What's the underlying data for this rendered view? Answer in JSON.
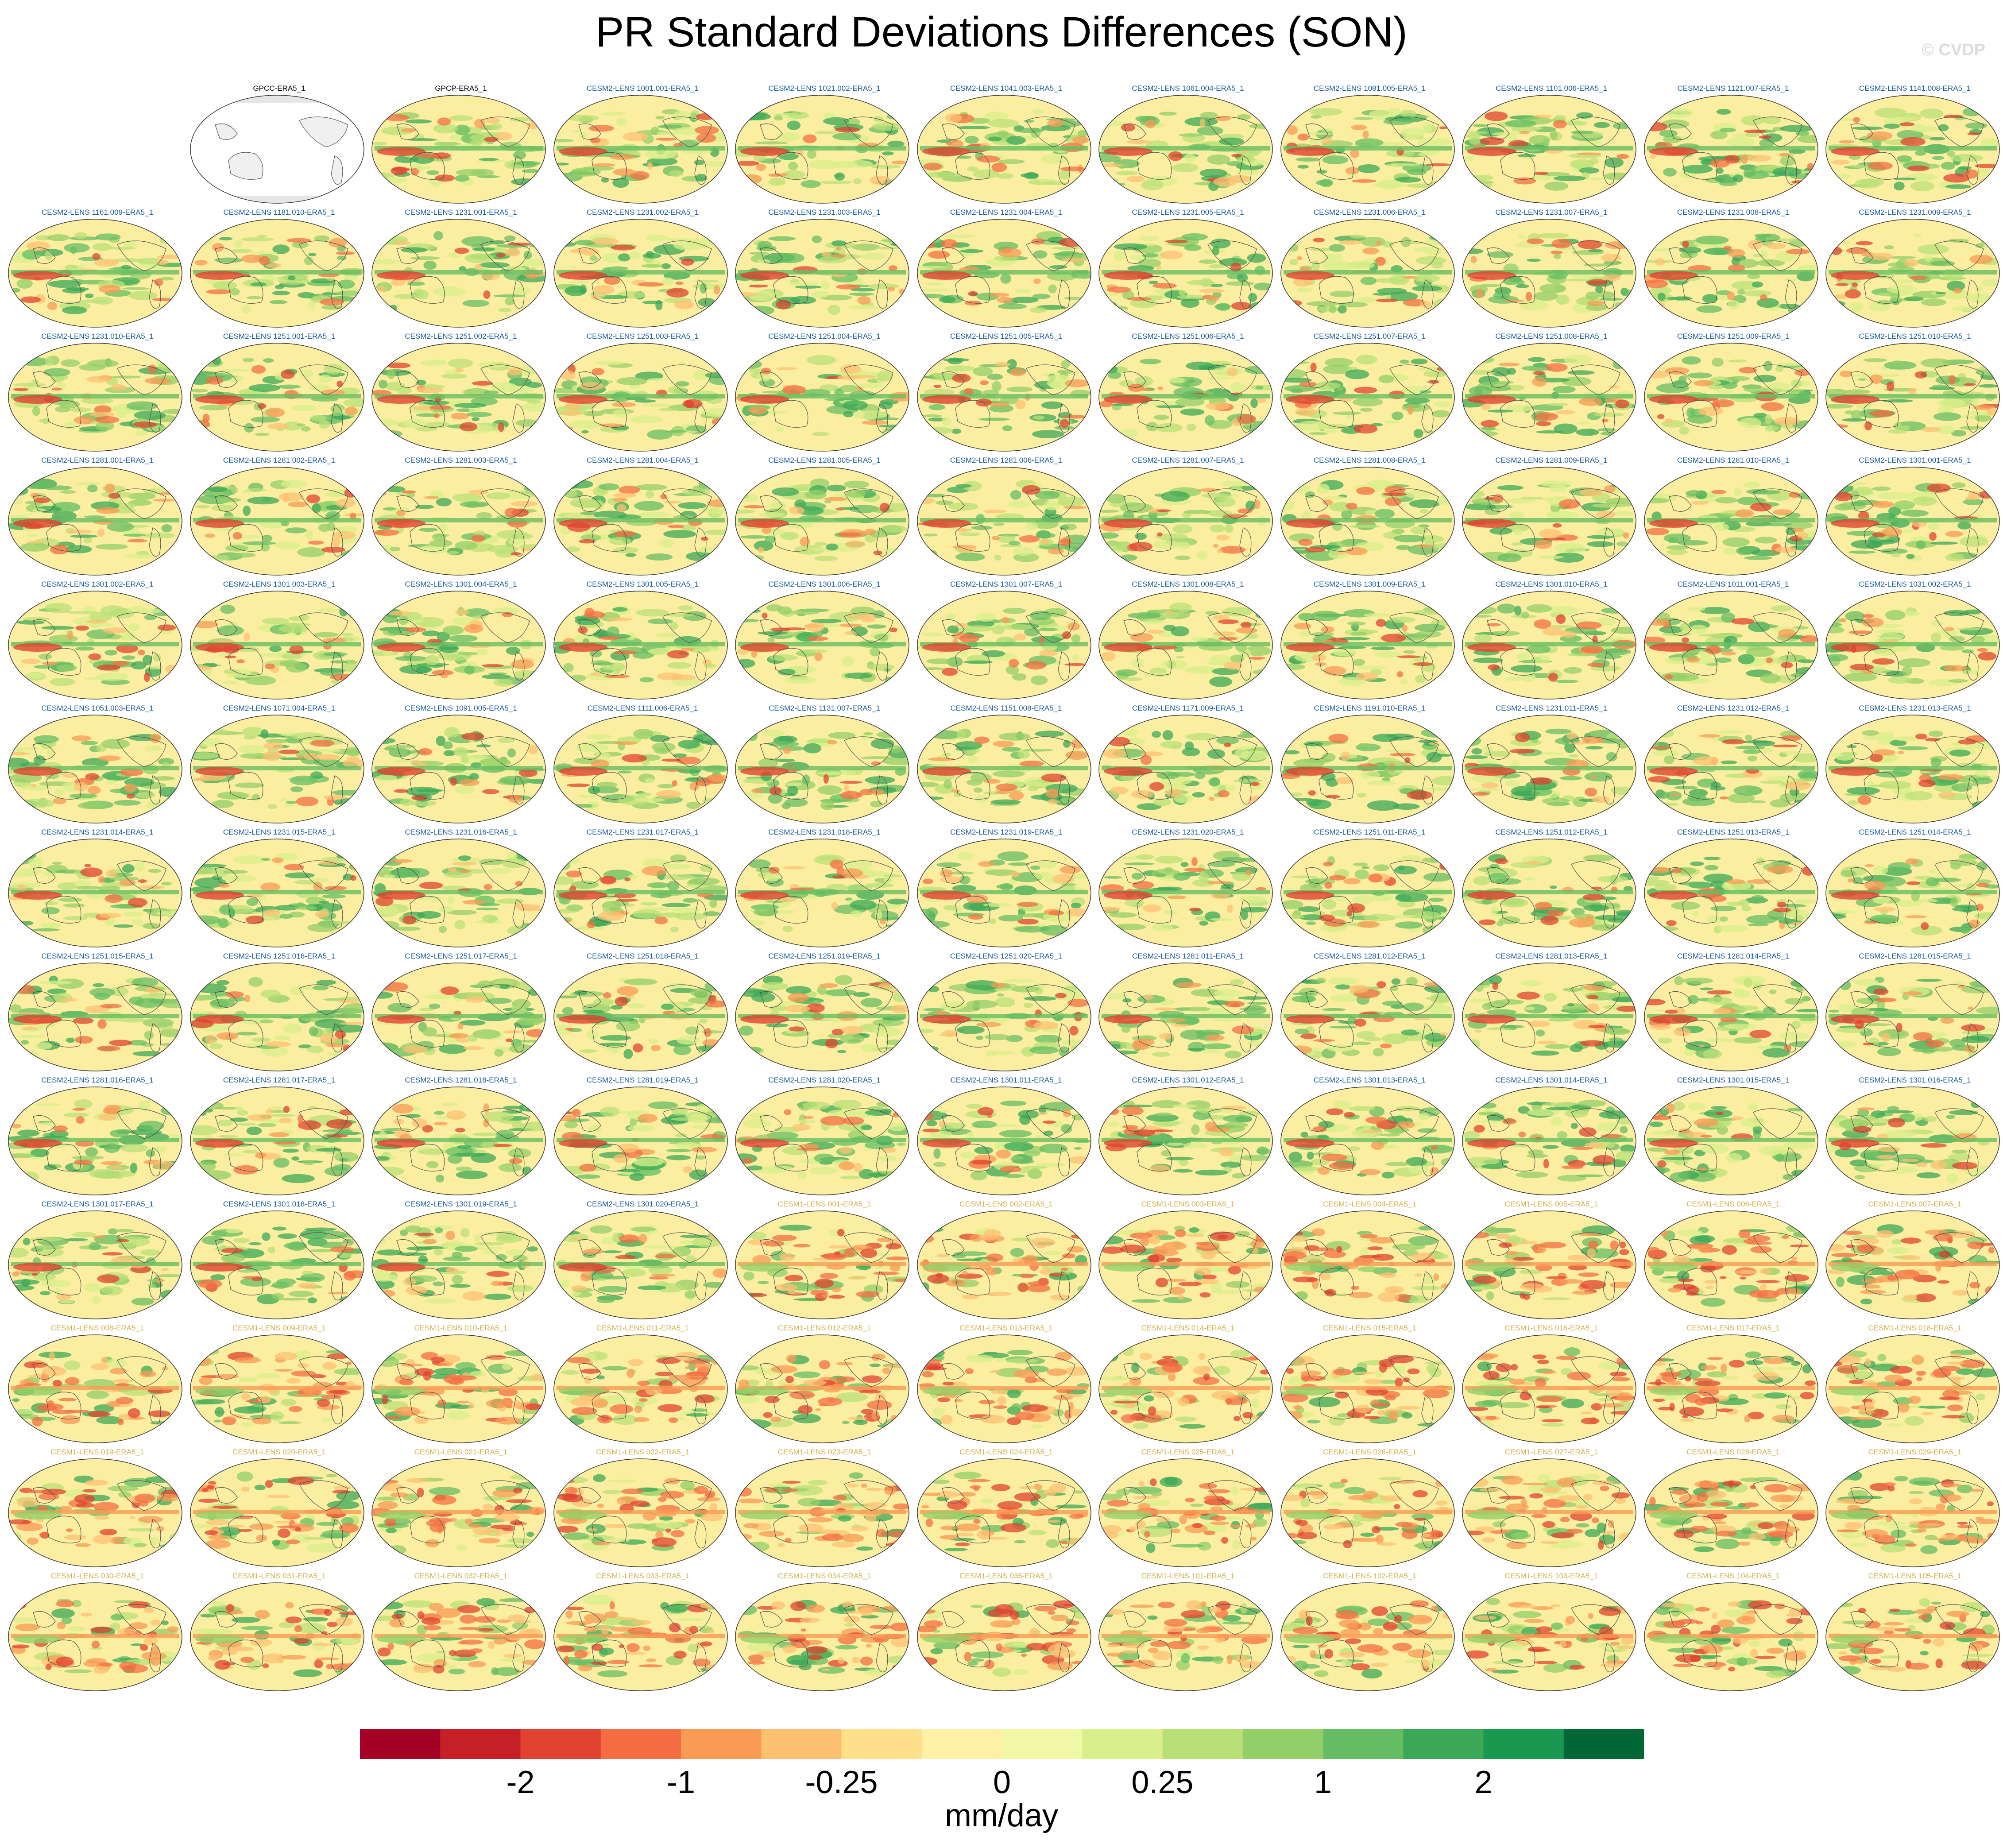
{
  "title": "PR Standard Deviations Differences (SON)",
  "credit": "© CVDP",
  "units": "mm/day",
  "colorbar": {
    "colors": [
      "#a50026",
      "#c62026",
      "#e0422f",
      "#f46d43",
      "#f99a55",
      "#fdc073",
      "#fee08b",
      "#fff2a6",
      "#f1f9a9",
      "#d9ef8b",
      "#b9e078",
      "#93cf68",
      "#66bd63",
      "#3aa857",
      "#1a9850",
      "#006837"
    ],
    "tick_labels": [
      "-2",
      "-1",
      "-0.25",
      "0",
      "0.25",
      "1",
      "2"
    ],
    "tick_boundaries": [
      2,
      4,
      6,
      8,
      10,
      12,
      14
    ]
  },
  "label_colors": {
    "obs": "#000000",
    "cesm2": "#1a5a9a",
    "cesm1": "#d4b04a"
  },
  "panels": [
    {
      "label": "GPCC-ERA5_1",
      "group": "obs",
      "map": "land"
    },
    {
      "label": "GPCP-ERA5_1",
      "group": "obs",
      "map": "gpcp"
    },
    {
      "label": "CESM2-LENS 1001.001-ERA5_1",
      "group": "cesm2"
    },
    {
      "label": "CESM2-LENS 1021.002-ERA5_1",
      "group": "cesm2"
    },
    {
      "label": "CESM2-LENS 1041.003-ERA5_1",
      "group": "cesm2"
    },
    {
      "label": "CESM2-LENS 1061.004-ERA5_1",
      "group": "cesm2"
    },
    {
      "label": "CESM2-LENS 1081.005-ERA5_1",
      "group": "cesm2"
    },
    {
      "label": "CESM2-LENS 1101.006-ERA5_1",
      "group": "cesm2"
    },
    {
      "label": "CESM2-LENS 1121.007-ERA5_1",
      "group": "cesm2"
    },
    {
      "label": "CESM2-LENS 1141.008-ERA5_1",
      "group": "cesm2"
    },
    {
      "label": "CESM2-LENS 1161.009-ERA5_1",
      "group": "cesm2"
    },
    {
      "label": "CESM2-LENS 1181.010-ERA5_1",
      "group": "cesm2"
    },
    {
      "label": "CESM2-LENS 1231.001-ERA5_1",
      "group": "cesm2"
    },
    {
      "label": "CESM2-LENS 1231.002-ERA5_1",
      "group": "cesm2"
    },
    {
      "label": "CESM2-LENS 1231.003-ERA5_1",
      "group": "cesm2"
    },
    {
      "label": "CESM2-LENS 1231.004-ERA5_1",
      "group": "cesm2"
    },
    {
      "label": "CESM2-LENS 1231.005-ERA5_1",
      "group": "cesm2"
    },
    {
      "label": "CESM2-LENS 1231.006-ERA5_1",
      "group": "cesm2"
    },
    {
      "label": "CESM2-LENS 1231.007-ERA5_1",
      "group": "cesm2"
    },
    {
      "label": "CESM2-LENS 1231.008-ERA5_1",
      "group": "cesm2"
    },
    {
      "label": "CESM2-LENS 1231.009-ERA5_1",
      "group": "cesm2"
    },
    {
      "label": "CESM2-LENS 1231.010-ERA5_1",
      "group": "cesm2"
    },
    {
      "label": "CESM2-LENS 1251.001-ERA5_1",
      "group": "cesm2"
    },
    {
      "label": "CESM2-LENS 1251.002-ERA5_1",
      "group": "cesm2"
    },
    {
      "label": "CESM2-LENS 1251.003-ERA5_1",
      "group": "cesm2"
    },
    {
      "label": "CESM2-LENS 1251.004-ERA5_1",
      "group": "cesm2"
    },
    {
      "label": "CESM2-LENS 1251.005-ERA5_1",
      "group": "cesm2"
    },
    {
      "label": "CESM2-LENS 1251.006-ERA5_1",
      "group": "cesm2"
    },
    {
      "label": "CESM2-LENS 1251.007-ERA5_1",
      "group": "cesm2"
    },
    {
      "label": "CESM2-LENS 1251.008-ERA5_1",
      "group": "cesm2"
    },
    {
      "label": "CESM2-LENS 1251.009-ERA5_1",
      "group": "cesm2"
    },
    {
      "label": "CESM2-LENS 1251.010-ERA5_1",
      "group": "cesm2"
    },
    {
      "label": "CESM2-LENS 1281.001-ERA5_1",
      "group": "cesm2"
    },
    {
      "label": "CESM2-LENS 1281.002-ERA5_1",
      "group": "cesm2"
    },
    {
      "label": "CESM2-LENS 1281.003-ERA5_1",
      "group": "cesm2"
    },
    {
      "label": "CESM2-LENS 1281.004-ERA5_1",
      "group": "cesm2"
    },
    {
      "label": "CESM2-LENS 1281.005-ERA5_1",
      "group": "cesm2"
    },
    {
      "label": "CESM2-LENS 1281.006-ERA5_1",
      "group": "cesm2"
    },
    {
      "label": "CESM2-LENS 1281.007-ERA5_1",
      "group": "cesm2"
    },
    {
      "label": "CESM2-LENS 1281.008-ERA5_1",
      "group": "cesm2"
    },
    {
      "label": "CESM2-LENS 1281.009-ERA5_1",
      "group": "cesm2"
    },
    {
      "label": "CESM2-LENS 1281.010-ERA5_1",
      "group": "cesm2"
    },
    {
      "label": "CESM2-LENS 1301.001-ERA5_1",
      "group": "cesm2"
    },
    {
      "label": "CESM2-LENS 1301.002-ERA5_1",
      "group": "cesm2"
    },
    {
      "label": "CESM2-LENS 1301.003-ERA5_1",
      "group": "cesm2"
    },
    {
      "label": "CESM2-LENS 1301.004-ERA5_1",
      "group": "cesm2"
    },
    {
      "label": "CESM2-LENS 1301.005-ERA5_1",
      "group": "cesm2"
    },
    {
      "label": "CESM2-LENS 1301.006-ERA5_1",
      "group": "cesm2"
    },
    {
      "label": "CESM2-LENS 1301.007-ERA5_1",
      "group": "cesm2"
    },
    {
      "label": "CESM2-LENS 1301.008-ERA5_1",
      "group": "cesm2"
    },
    {
      "label": "CESM2-LENS 1301.009-ERA5_1",
      "group": "cesm2"
    },
    {
      "label": "CESM2-LENS 1301.010-ERA5_1",
      "group": "cesm2"
    },
    {
      "label": "CESM2-LENS 1011.001-ERA5_1",
      "group": "cesm2"
    },
    {
      "label": "CESM2-LENS 1031.002-ERA5_1",
      "group": "cesm2"
    },
    {
      "label": "CESM2-LENS 1051.003-ERA5_1",
      "group": "cesm2"
    },
    {
      "label": "CESM2-LENS 1071.004-ERA5_1",
      "group": "cesm2"
    },
    {
      "label": "CESM2-LENS 1091.005-ERA5_1",
      "group": "cesm2"
    },
    {
      "label": "CESM2-LENS 1111.006-ERA5_1",
      "group": "cesm2"
    },
    {
      "label": "CESM2-LENS 1131.007-ERA5_1",
      "group": "cesm2"
    },
    {
      "label": "CESM2-LENS 1151.008-ERA5_1",
      "group": "cesm2"
    },
    {
      "label": "CESM2-LENS 1171.009-ERA5_1",
      "group": "cesm2"
    },
    {
      "label": "CESM2-LENS 1191.010-ERA5_1",
      "group": "cesm2"
    },
    {
      "label": "CESM2-LENS 1231.011-ERA5_1",
      "group": "cesm2"
    },
    {
      "label": "CESM2-LENS 1231.012-ERA5_1",
      "group": "cesm2"
    },
    {
      "label": "CESM2-LENS 1231.013-ERA5_1",
      "group": "cesm2"
    },
    {
      "label": "CESM2-LENS 1231.014-ERA5_1",
      "group": "cesm2"
    },
    {
      "label": "CESM2-LENS 1231.015-ERA5_1",
      "group": "cesm2"
    },
    {
      "label": "CESM2-LENS 1231.016-ERA5_1",
      "group": "cesm2"
    },
    {
      "label": "CESM2-LENS 1231.017-ERA5_1",
      "group": "cesm2"
    },
    {
      "label": "CESM2-LENS 1231.018-ERA5_1",
      "group": "cesm2"
    },
    {
      "label": "CESM2-LENS 1231.019-ERA5_1",
      "group": "cesm2"
    },
    {
      "label": "CESM2-LENS 1231.020-ERA5_1",
      "group": "cesm2"
    },
    {
      "label": "CESM2-LENS 1251.011-ERA5_1",
      "group": "cesm2"
    },
    {
      "label": "CESM2-LENS 1251.012-ERA5_1",
      "group": "cesm2"
    },
    {
      "label": "CESM2-LENS 1251.013-ERA5_1",
      "group": "cesm2"
    },
    {
      "label": "CESM2-LENS 1251.014-ERA5_1",
      "group": "cesm2"
    },
    {
      "label": "CESM2-LENS 1251.015-ERA5_1",
      "group": "cesm2"
    },
    {
      "label": "CESM2-LENS 1251.016-ERA5_1",
      "group": "cesm2"
    },
    {
      "label": "CESM2-LENS 1251.017-ERA5_1",
      "group": "cesm2"
    },
    {
      "label": "CESM2-LENS 1251.018-ERA5_1",
      "group": "cesm2"
    },
    {
      "label": "CESM2-LENS 1251.019-ERA5_1",
      "group": "cesm2"
    },
    {
      "label": "CESM2-LENS 1251.020-ERA5_1",
      "group": "cesm2"
    },
    {
      "label": "CESM2-LENS 1281.011-ERA5_1",
      "group": "cesm2"
    },
    {
      "label": "CESM2-LENS 1281.012-ERA5_1",
      "group": "cesm2"
    },
    {
      "label": "CESM2-LENS 1281.013-ERA5_1",
      "group": "cesm2"
    },
    {
      "label": "CESM2-LENS 1281.014-ERA5_1",
      "group": "cesm2"
    },
    {
      "label": "CESM2-LENS 1281.015-ERA5_1",
      "group": "cesm2"
    },
    {
      "label": "CESM2-LENS 1281.016-ERA5_1",
      "group": "cesm2"
    },
    {
      "label": "CESM2-LENS 1281.017-ERA5_1",
      "group": "cesm2"
    },
    {
      "label": "CESM2-LENS 1281.018-ERA5_1",
      "group": "cesm2"
    },
    {
      "label": "CESM2-LENS 1281.019-ERA5_1",
      "group": "cesm2"
    },
    {
      "label": "CESM2-LENS 1281.020-ERA5_1",
      "group": "cesm2"
    },
    {
      "label": "CESM2-LENS 1301.011-ERA5_1",
      "group": "cesm2"
    },
    {
      "label": "CESM2-LENS 1301.012-ERA5_1",
      "group": "cesm2"
    },
    {
      "label": "CESM2-LENS 1301.013-ERA5_1",
      "group": "cesm2"
    },
    {
      "label": "CESM2-LENS 1301.014-ERA5_1",
      "group": "cesm2"
    },
    {
      "label": "CESM2-LENS 1301.015-ERA5_1",
      "group": "cesm2"
    },
    {
      "label": "CESM2-LENS 1301.016-ERA5_1",
      "group": "cesm2"
    },
    {
      "label": "CESM2-LENS 1301.017-ERA5_1",
      "group": "cesm2"
    },
    {
      "label": "CESM2-LENS 1301.018-ERA5_1",
      "group": "cesm2"
    },
    {
      "label": "CESM2-LENS 1301.019-ERA5_1",
      "group": "cesm2"
    },
    {
      "label": "CESM2-LENS 1301.020-ERA5_1",
      "group": "cesm2"
    },
    {
      "label": "CESM1-LENS 001-ERA5_1",
      "group": "cesm1"
    },
    {
      "label": "CESM1-LENS 002-ERA5_1",
      "group": "cesm1"
    },
    {
      "label": "CESM1-LENS 003-ERA5_1",
      "group": "cesm1"
    },
    {
      "label": "CESM1-LENS 004-ERA5_1",
      "group": "cesm1"
    },
    {
      "label": "CESM1-LENS 005-ERA5_1",
      "group": "cesm1"
    },
    {
      "label": "CESM1-LENS 006-ERA5_1",
      "group": "cesm1"
    },
    {
      "label": "CESM1-LENS 007-ERA5_1",
      "group": "cesm1"
    },
    {
      "label": "CESM1-LENS 008-ERA5_1",
      "group": "cesm1"
    },
    {
      "label": "CESM1-LENS 009-ERA5_1",
      "group": "cesm1"
    },
    {
      "label": "CESM1-LENS 010-ERA5_1",
      "group": "cesm1"
    },
    {
      "label": "CESM1-LENS 011-ERA5_1",
      "group": "cesm1"
    },
    {
      "label": "CESM1-LENS 012-ERA5_1",
      "group": "cesm1"
    },
    {
      "label": "CESM1-LENS 013-ERA5_1",
      "group": "cesm1"
    },
    {
      "label": "CESM1-LENS 014-ERA5_1",
      "group": "cesm1"
    },
    {
      "label": "CESM1-LENS 015-ERA5_1",
      "group": "cesm1"
    },
    {
      "label": "CESM1-LENS 016-ERA5_1",
      "group": "cesm1"
    },
    {
      "label": "CESM1-LENS 017-ERA5_1",
      "group": "cesm1"
    },
    {
      "label": "CESM1-LENS 018-ERA5_1",
      "group": "cesm1"
    },
    {
      "label": "CESM1-LENS 019-ERA5_1",
      "group": "cesm1"
    },
    {
      "label": "CESM1-LENS 020-ERA5_1",
      "group": "cesm1"
    },
    {
      "label": "CESM1-LENS 021-ERA5_1",
      "group": "cesm1"
    },
    {
      "label": "CESM1-LENS 022-ERA5_1",
      "group": "cesm1"
    },
    {
      "label": "CESM1-LENS 023-ERA5_1",
      "group": "cesm1"
    },
    {
      "label": "CESM1-LENS 024-ERA5_1",
      "group": "cesm1"
    },
    {
      "label": "CESM1-LENS 025-ERA5_1",
      "group": "cesm1"
    },
    {
      "label": "CESM1-LENS 026-ERA5_1",
      "group": "cesm1"
    },
    {
      "label": "CESM1-LENS 027-ERA5_1",
      "group": "cesm1"
    },
    {
      "label": "CESM1-LENS 028-ERA5_1",
      "group": "cesm1"
    },
    {
      "label": "CESM1-LENS 029-ERA5_1",
      "group": "cesm1"
    },
    {
      "label": "CESM1-LENS 030-ERA5_1",
      "group": "cesm1"
    },
    {
      "label": "CESM1-LENS 031-ERA5_1",
      "group": "cesm1"
    },
    {
      "label": "CESM1-LENS 032-ERA5_1",
      "group": "cesm1"
    },
    {
      "label": "CESM1-LENS 033-ERA5_1",
      "group": "cesm1"
    },
    {
      "label": "CESM1-LENS 034-ERA5_1",
      "group": "cesm1"
    },
    {
      "label": "CESM1-LENS 035-ERA5_1",
      "group": "cesm1"
    },
    {
      "label": "CESM1-LENS 101-ERA5_1",
      "group": "cesm1"
    },
    {
      "label": "CESM1-LENS 102-ERA5_1",
      "group": "cesm1"
    },
    {
      "label": "CESM1-LENS 103-ERA5_1",
      "group": "cesm1"
    },
    {
      "label": "CESM1-LENS 104-ERA5_1",
      "group": "cesm1"
    },
    {
      "label": "CESM1-LENS 105-ERA5_1",
      "group": "cesm1"
    }
  ]
}
